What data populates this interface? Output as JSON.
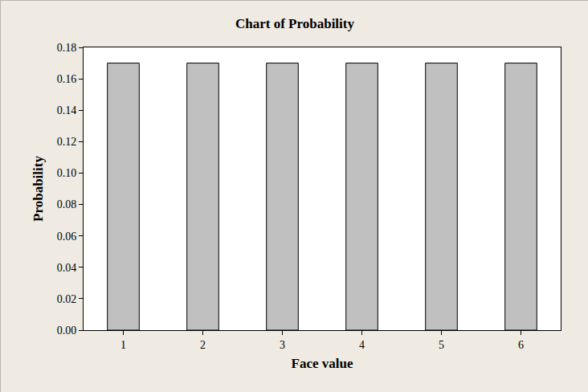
{
  "chart_data": {
    "type": "bar",
    "title": "Chart of Probability",
    "x_label": "Face value",
    "y_label": "Probability",
    "categories": [
      "1",
      "2",
      "3",
      "4",
      "5",
      "6"
    ],
    "values": [
      0.17,
      0.17,
      0.17,
      0.17,
      0.17,
      0.17
    ],
    "color": "#c0c0c0",
    "ylim": [
      0,
      0.18
    ],
    "yticks": [
      {
        "value": 0,
        "label": "0.00"
      },
      0.02,
      0.04,
      0.06,
      0.08,
      {
        "value": 0.1,
        "label": "0.10"
      },
      0.12,
      0.14,
      0.16,
      0.18
    ],
    "grid": false
  }
}
